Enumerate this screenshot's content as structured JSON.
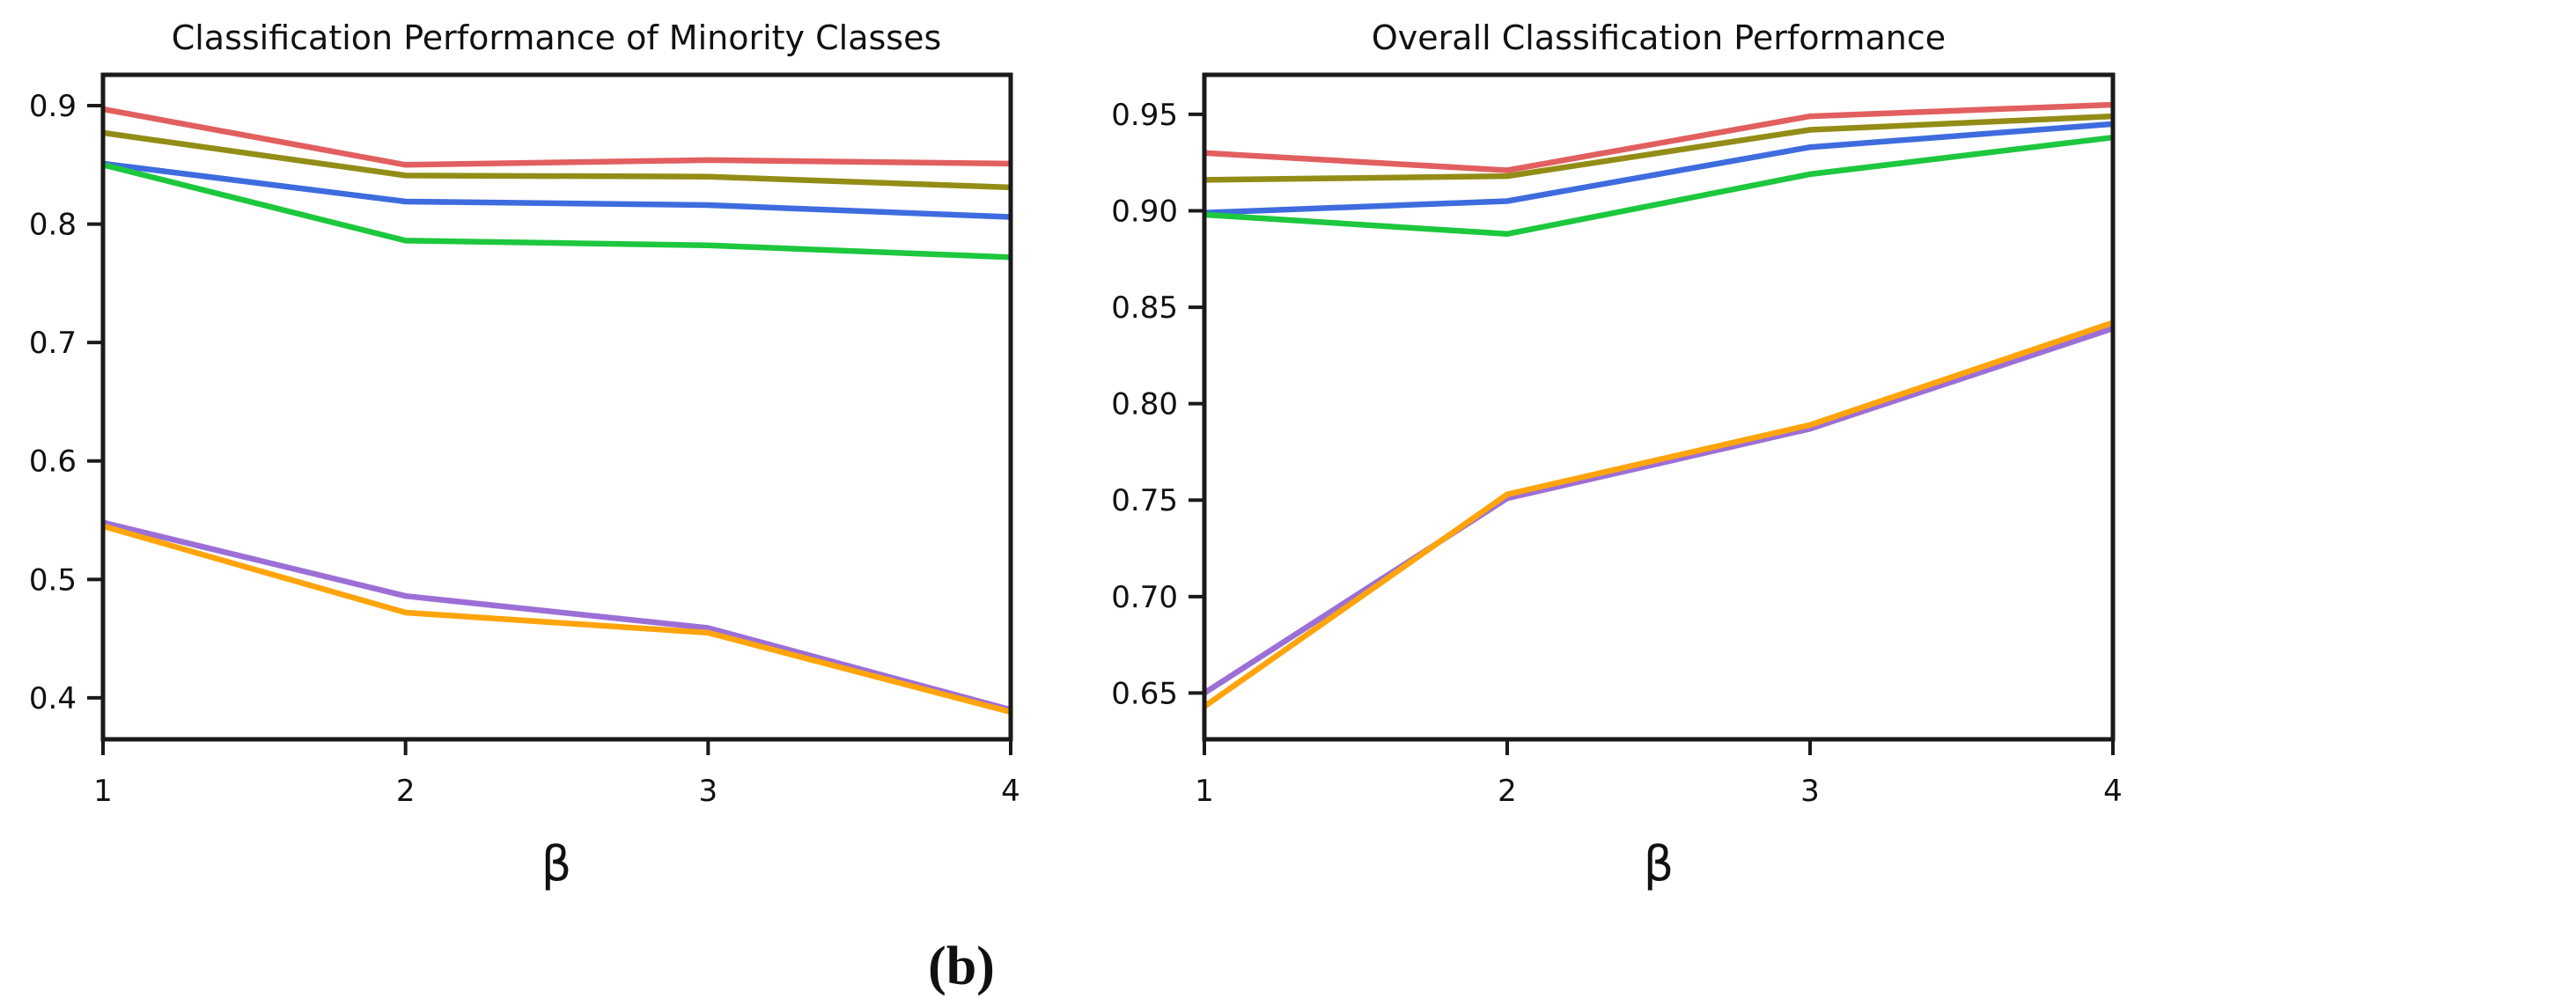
{
  "figure": {
    "caption": "(b)"
  },
  "chart_data": [
    {
      "type": "line",
      "title": "Classification Performance of Minority Classes",
      "xlabel": "β",
      "ylabel": "",
      "grid": false,
      "legend": "none",
      "x": [
        1,
        2,
        3,
        4
      ],
      "xlim": [
        1,
        4
      ],
      "ylim": [
        0.365,
        0.926
      ],
      "xticks": [
        {
          "value": 1,
          "label": "1"
        },
        {
          "value": 2,
          "label": "2"
        },
        {
          "value": 3,
          "label": "3"
        },
        {
          "value": 4,
          "label": "4"
        }
      ],
      "yticks": [
        {
          "value": 0.9,
          "label": "0.9"
        },
        {
          "value": 0.8,
          "label": "0.8"
        },
        {
          "value": 0.7,
          "label": "0.7"
        },
        {
          "value": 0.6,
          "label": "0.6"
        },
        {
          "value": 0.5,
          "label": "0.5"
        },
        {
          "value": 0.4,
          "label": "0.4"
        }
      ],
      "series": [
        {
          "name": "red",
          "color": "#e25f5f",
          "values": [
            0.897,
            0.85,
            0.854,
            0.851
          ]
        },
        {
          "name": "olive",
          "color": "#938d17",
          "values": [
            0.877,
            0.841,
            0.84,
            0.831
          ]
        },
        {
          "name": "blue",
          "color": "#3e6cdf",
          "values": [
            0.851,
            0.819,
            0.816,
            0.806
          ]
        },
        {
          "name": "green",
          "color": "#1dc73e",
          "values": [
            0.85,
            0.786,
            0.782,
            0.772
          ]
        },
        {
          "name": "purple",
          "color": "#9c6fd6",
          "values": [
            0.548,
            0.486,
            0.459,
            0.39
          ]
        },
        {
          "name": "orange",
          "color": "#ffa40a",
          "values": [
            0.545,
            0.472,
            0.455,
            0.388
          ]
        }
      ]
    },
    {
      "type": "line",
      "title": "Overall Classification Performance",
      "xlabel": "β",
      "ylabel": "",
      "grid": false,
      "legend": "none",
      "x": [
        1,
        2,
        3,
        4
      ],
      "xlim": [
        1,
        4
      ],
      "ylim": [
        0.626,
        0.9705
      ],
      "xticks": [
        {
          "value": 1,
          "label": "1"
        },
        {
          "value": 2,
          "label": "2"
        },
        {
          "value": 3,
          "label": "3"
        },
        {
          "value": 4,
          "label": "4"
        }
      ],
      "yticks": [
        {
          "value": 0.95,
          "label": "0.95"
        },
        {
          "value": 0.9,
          "label": "0.90"
        },
        {
          "value": 0.85,
          "label": "0.85"
        },
        {
          "value": 0.8,
          "label": "0.80"
        },
        {
          "value": 0.75,
          "label": "0.75"
        },
        {
          "value": 0.7,
          "label": "0.70"
        },
        {
          "value": 0.65,
          "label": "0.65"
        }
      ],
      "series": [
        {
          "name": "red",
          "color": "#e25f5f",
          "values": [
            0.93,
            0.921,
            0.949,
            0.955
          ]
        },
        {
          "name": "olive",
          "color": "#938d17",
          "values": [
            0.916,
            0.918,
            0.942,
            0.949
          ]
        },
        {
          "name": "blue",
          "color": "#3e6cdf",
          "values": [
            0.899,
            0.905,
            0.933,
            0.945
          ]
        },
        {
          "name": "green",
          "color": "#1dc73e",
          "values": [
            0.898,
            0.888,
            0.919,
            0.938
          ]
        },
        {
          "name": "purple",
          "color": "#9c6fd6",
          "values": [
            0.65,
            0.751,
            0.787,
            0.839
          ]
        },
        {
          "name": "orange",
          "color": "#ffa40a",
          "values": [
            0.643,
            0.753,
            0.789,
            0.842
          ]
        }
      ]
    }
  ]
}
